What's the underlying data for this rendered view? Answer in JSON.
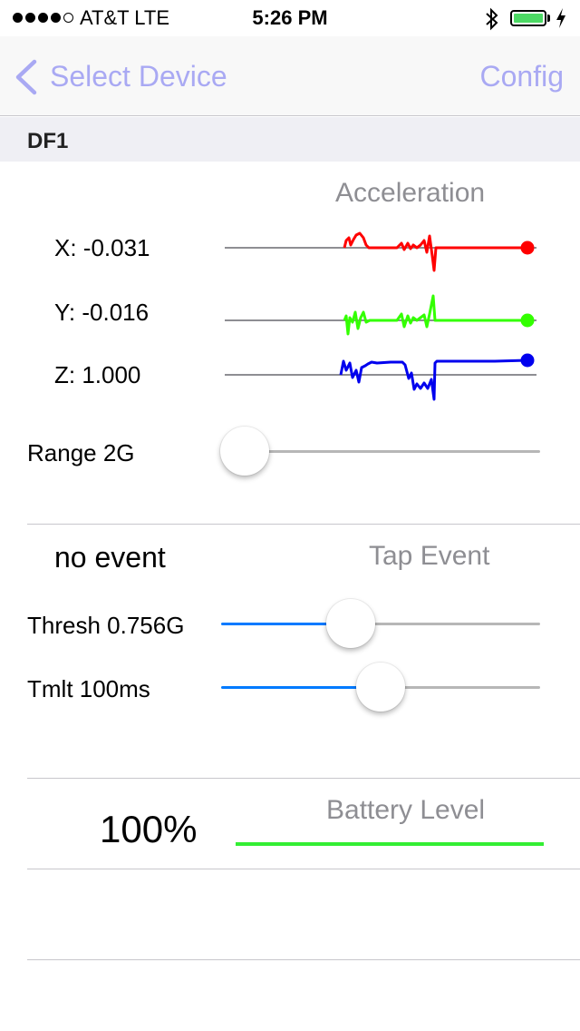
{
  "status_bar": {
    "carrier": "AT&T   LTE",
    "time": "5:26 PM",
    "battery_fill": 1.0
  },
  "nav": {
    "back_label": "Select Device",
    "right_label": "Config",
    "tint": "#a9a9f3"
  },
  "section": {
    "title": "DF1"
  },
  "acceleration": {
    "title": "Acceleration",
    "x_label": "X: -0.031",
    "y_label": "Y: -0.016",
    "z_label": "Z: 1.000",
    "colors": {
      "x": "#ff0000",
      "y": "#33ff00",
      "z": "#0000ee"
    }
  },
  "range": {
    "label": "Range 2G",
    "value": 0.0
  },
  "tap": {
    "status": "no event",
    "title": "Tap Event",
    "thresh_label": "Thresh 0.756G",
    "thresh_value": 0.38,
    "tmlt_label": "Tmlt 100ms",
    "tmlt_value": 0.5
  },
  "battery_level": {
    "value_text": "100%",
    "title": "Battery Level",
    "fill": 1.0,
    "color": "#33ee33"
  }
}
